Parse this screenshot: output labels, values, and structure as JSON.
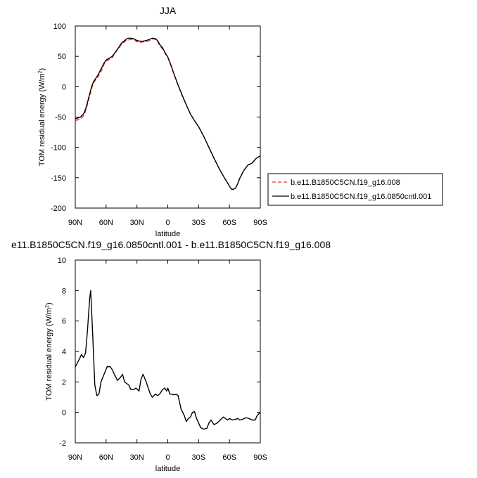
{
  "colors": {
    "control": "#000000",
    "experiment": "#e8312a",
    "diff": "#000000"
  },
  "chart_data": [
    {
      "type": "line",
      "title": "JJA",
      "xlabel": "latitude",
      "ylabel": "TOM residual energy (W/m",
      "ylabel_sup": "2",
      "ylabel_close": ")",
      "xlim": [
        90,
        -90
      ],
      "ylim": [
        -200,
        100
      ],
      "xticks": [
        {
          "v": 90,
          "label": "90N"
        },
        {
          "v": 60,
          "label": "60N"
        },
        {
          "v": 30,
          "label": "30N"
        },
        {
          "v": 0,
          "label": "0"
        },
        {
          "v": -30,
          "label": "30S"
        },
        {
          "v": -60,
          "label": "60S"
        },
        {
          "v": -90,
          "label": "90S"
        }
      ],
      "yticks": [
        {
          "v": 100,
          "label": "100"
        },
        {
          "v": 50,
          "label": "50"
        },
        {
          "v": 0,
          "label": "0"
        },
        {
          "v": -50,
          "label": "-50"
        },
        {
          "v": -100,
          "label": "-100"
        },
        {
          "v": -150,
          "label": "-150"
        },
        {
          "v": -200,
          "label": "-200"
        }
      ],
      "legend": {
        "position": "right"
      },
      "series": [
        {
          "name": "b.e11.B1850C5CN.f19_g16.008",
          "style": "dashed",
          "x": [
            90,
            85,
            82,
            80,
            78,
            76,
            74,
            72,
            70,
            68,
            65,
            62,
            60,
            57,
            54,
            51,
            48,
            45,
            42,
            40,
            38,
            36,
            33,
            30,
            27,
            24,
            21,
            18,
            15,
            12,
            10,
            8,
            5,
            3,
            0,
            -3,
            -6,
            -10,
            -14,
            -18,
            -22,
            -26,
            -30,
            -35,
            -40,
            -45,
            -50,
            -55,
            -58,
            -60,
            -62,
            -64,
            -66,
            -68,
            -70,
            -74,
            -78,
            -82,
            -86,
            -90
          ],
          "y": [
            -56,
            -53,
            -48,
            -40,
            -28,
            -15,
            -2,
            7,
            12,
            16,
            25,
            37,
            42,
            45,
            48,
            56,
            63,
            70,
            74,
            77,
            77,
            78,
            78,
            74,
            73,
            74,
            74,
            76,
            79,
            78,
            75,
            68,
            62,
            56,
            48,
            35,
            20,
            2,
            -15,
            -30,
            -45,
            -56,
            -66,
            -82,
            -100,
            -118,
            -135,
            -150,
            -158,
            -164,
            -169,
            -169,
            -167,
            -160,
            -151,
            -138,
            -129,
            -126,
            -118,
            -114
          ]
        },
        {
          "name": "b.e11.B1850C5CN.f19_g16.0850cntl.001",
          "style": "solid",
          "x": [
            90,
            85,
            82,
            80,
            78,
            76,
            74,
            72,
            70,
            68,
            65,
            62,
            60,
            57,
            54,
            51,
            48,
            45,
            42,
            40,
            38,
            36,
            33,
            30,
            27,
            24,
            21,
            18,
            15,
            12,
            10,
            8,
            5,
            3,
            0,
            -3,
            -6,
            -10,
            -14,
            -18,
            -22,
            -26,
            -30,
            -35,
            -40,
            -45,
            -50,
            -55,
            -58,
            -60,
            -62,
            -64,
            -66,
            -68,
            -70,
            -74,
            -78,
            -82,
            -86,
            -90
          ],
          "y": [
            -53,
            -50,
            -45,
            -37,
            -25,
            -12,
            1,
            9,
            14,
            19,
            29,
            39,
            44,
            47,
            50,
            57,
            64,
            72,
            76,
            79,
            80,
            80,
            79,
            76,
            75,
            75,
            76,
            78,
            80,
            79,
            76,
            70,
            64,
            57,
            49,
            36,
            21,
            3,
            -14,
            -30,
            -45,
            -56,
            -66,
            -82,
            -100,
            -118,
            -135,
            -150,
            -158,
            -164,
            -169,
            -169,
            -167,
            -160,
            -151,
            -138,
            -129,
            -126,
            -118,
            -114
          ]
        }
      ]
    },
    {
      "type": "line",
      "title": "e11.B1850C5CN.f19_g16.0850cntl.001 - b.e11.B1850C5CN.f19_g16.008",
      "xlabel": "latitude",
      "ylabel": "TOM residual energy (W/m",
      "ylabel_sup": "2",
      "ylabel_close": ")",
      "xlim": [
        90,
        -90
      ],
      "ylim": [
        -2,
        10
      ],
      "xticks": [
        {
          "v": 90,
          "label": "90N"
        },
        {
          "v": 60,
          "label": "60N"
        },
        {
          "v": 30,
          "label": "30N"
        },
        {
          "v": 0,
          "label": "0"
        },
        {
          "v": -30,
          "label": "30S"
        },
        {
          "v": -60,
          "label": "60S"
        },
        {
          "v": -90,
          "label": "90S"
        }
      ],
      "yticks": [
        {
          "v": 10,
          "label": "10"
        },
        {
          "v": 8,
          "label": "8"
        },
        {
          "v": 6,
          "label": "6"
        },
        {
          "v": 4,
          "label": "4"
        },
        {
          "v": 2,
          "label": "2"
        },
        {
          "v": 0,
          "label": "0"
        },
        {
          "v": -2,
          "label": "-2"
        }
      ],
      "series": [
        {
          "style": "solid",
          "x": [
            90,
            86,
            84,
            82,
            80,
            78,
            77,
            76,
            75,
            73,
            71,
            69,
            67,
            65,
            62,
            59,
            56,
            54,
            52,
            49,
            46,
            44,
            42,
            40,
            38,
            36,
            33,
            31,
            28,
            26,
            24,
            21,
            19,
            17,
            15,
            12,
            10,
            8,
            5,
            3,
            1,
            0,
            -2,
            -4,
            -6,
            -8,
            -10,
            -13,
            -16,
            -18,
            -20,
            -22,
            -24,
            -26,
            -28,
            -30,
            -32,
            -35,
            -38,
            -40,
            -42,
            -45,
            -48,
            -51,
            -54,
            -56,
            -58,
            -60,
            -63,
            -66,
            -68,
            -70,
            -73,
            -76,
            -79,
            -82,
            -85,
            -87,
            -90
          ],
          "y": [
            3,
            3.5,
            3.8,
            3.6,
            3.9,
            5.5,
            6.5,
            7.5,
            8,
            5,
            1.8,
            1.1,
            1.2,
            2,
            2.5,
            3,
            3,
            2.8,
            2.5,
            2.1,
            2.3,
            2.5,
            2,
            1.9,
            1.8,
            1.5,
            1.5,
            1.6,
            1.4,
            2.2,
            2.5,
            2,
            1.6,
            1.2,
            1,
            1.2,
            1.1,
            1.2,
            1.5,
            1.6,
            1.4,
            1.6,
            1.2,
            1.2,
            1.15,
            1.2,
            1.1,
            0.2,
            -0.2,
            -0.6,
            -0.4,
            -0.3,
            0,
            0.05,
            -0.4,
            -0.7,
            -1.0,
            -1.1,
            -1.05,
            -0.7,
            -0.5,
            -0.8,
            -0.7,
            -0.5,
            -0.3,
            -0.4,
            -0.5,
            -0.4,
            -0.5,
            -0.45,
            -0.4,
            -0.5,
            -0.45,
            -0.35,
            -0.4,
            -0.5,
            -0.5,
            -0.2,
            0
          ]
        }
      ]
    }
  ]
}
